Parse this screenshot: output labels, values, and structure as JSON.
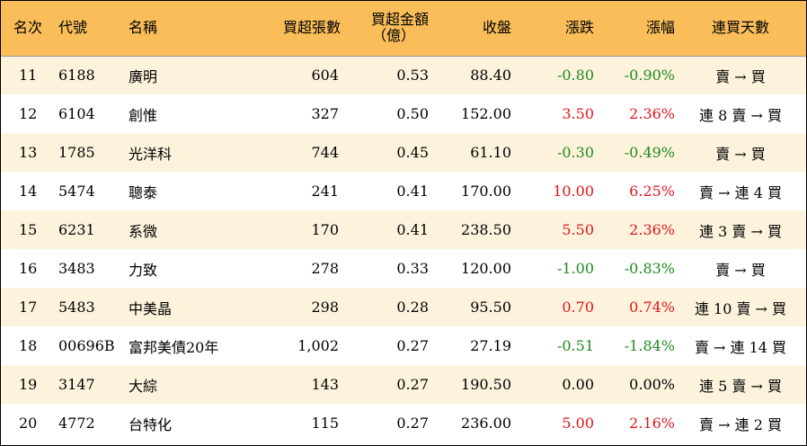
{
  "colors": {
    "header_bg": "#f9be5a",
    "odd_row_bg": "#fdf3dc",
    "even_row_bg": "#ffffff",
    "up": "#e0161e",
    "down": "#1f8a1f"
  },
  "headers": {
    "rank": "名次",
    "code": "代號",
    "name": "名稱",
    "volume": "買超張數",
    "amount_line1": "買超金額",
    "amount_line2": "（億）",
    "close": "收盤",
    "change": "漲跌",
    "pct": "漲幅",
    "days": "連買天數"
  },
  "rows": [
    {
      "rank": "11",
      "code": "6188",
      "name": "廣明",
      "volume": "604",
      "amount": "0.53",
      "close": "88.40",
      "change": "-0.80",
      "pct": "-0.90%",
      "days": "賣 → 買",
      "dir": "down"
    },
    {
      "rank": "12",
      "code": "6104",
      "name": "創惟",
      "volume": "327",
      "amount": "0.50",
      "close": "152.00",
      "change": "3.50",
      "pct": "2.36%",
      "days": "連 8 賣 → 買",
      "dir": "up"
    },
    {
      "rank": "13",
      "code": "1785",
      "name": "光洋科",
      "volume": "744",
      "amount": "0.45",
      "close": "61.10",
      "change": "-0.30",
      "pct": "-0.49%",
      "days": "賣 → 買",
      "dir": "down"
    },
    {
      "rank": "14",
      "code": "5474",
      "name": "聰泰",
      "volume": "241",
      "amount": "0.41",
      "close": "170.00",
      "change": "10.00",
      "pct": "6.25%",
      "days": "賣 → 連 4 買",
      "dir": "up"
    },
    {
      "rank": "15",
      "code": "6231",
      "name": "系微",
      "volume": "170",
      "amount": "0.41",
      "close": "238.50",
      "change": "5.50",
      "pct": "2.36%",
      "days": "連 3 賣 → 買",
      "dir": "up"
    },
    {
      "rank": "16",
      "code": "3483",
      "name": "力致",
      "volume": "278",
      "amount": "0.33",
      "close": "120.00",
      "change": "-1.00",
      "pct": "-0.83%",
      "days": "賣 → 買",
      "dir": "down"
    },
    {
      "rank": "17",
      "code": "5483",
      "name": "中美晶",
      "volume": "298",
      "amount": "0.28",
      "close": "95.50",
      "change": "0.70",
      "pct": "0.74%",
      "days": "連 10 賣 → 買",
      "dir": "up"
    },
    {
      "rank": "18",
      "code": "00696B",
      "name": "富邦美債20年",
      "volume": "1,002",
      "amount": "0.27",
      "close": "27.19",
      "change": "-0.51",
      "pct": "-1.84%",
      "days": "賣 → 連 14 買",
      "dir": "down"
    },
    {
      "rank": "19",
      "code": "3147",
      "name": "大綜",
      "volume": "143",
      "amount": "0.27",
      "close": "190.50",
      "change": "0.00",
      "pct": "0.00%",
      "days": "連 5 賣 → 買",
      "dir": "flat"
    },
    {
      "rank": "20",
      "code": "4772",
      "name": "台特化",
      "volume": "115",
      "amount": "0.27",
      "close": "236.00",
      "change": "5.00",
      "pct": "2.16%",
      "days": "賣 → 連 2 買",
      "dir": "up"
    }
  ]
}
